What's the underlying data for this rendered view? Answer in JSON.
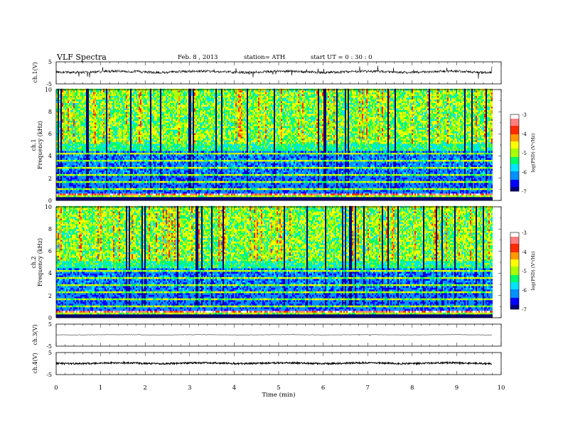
{
  "header": {
    "title": "VLF  Spectra",
    "date": "Feb. 8  , 2013",
    "station": "station= ATH",
    "start_ut": "start  UT  =    0  : 30 : 0"
  },
  "chart_data": [
    {
      "type": "line",
      "id": "ch1",
      "ylabel": "ch.1(V)",
      "ylim": [
        -5,
        5
      ],
      "yticks": [
        "5",
        "-5"
      ],
      "description_level": 0,
      "x_unit": "min",
      "xlim": [
        0,
        10
      ],
      "data_end_x": 9.8
    },
    {
      "type": "heatmap",
      "id": "ch1-spec",
      "ylabel_line1": "ch.1",
      "ylabel_line2": "Frequency  (kHz)",
      "ylim": [
        0,
        10
      ],
      "yticks": [
        "0",
        "2",
        "4",
        "6",
        "8",
        "10"
      ],
      "xlim": [
        0,
        10
      ],
      "data_end_x": 9.8,
      "colorbar": {
        "label": "log(PSD) (V²/Hz)",
        "range": [
          -7,
          -3
        ],
        "ticks": [
          "-3",
          "-4",
          "-5",
          "-6",
          "-7"
        ]
      }
    },
    {
      "type": "heatmap",
      "id": "ch2-spec",
      "ylabel_line1": "ch.2",
      "ylabel_line2": "Frequency  (kHz)",
      "ylim": [
        0,
        10
      ],
      "yticks": [
        "0",
        "2",
        "4",
        "6",
        "8",
        "10"
      ],
      "xlim": [
        0,
        10
      ],
      "data_end_x": 9.8,
      "colorbar": {
        "label": "log(PSD) (V²/Hz)",
        "range": [
          -7,
          -3
        ],
        "ticks": [
          "-3",
          "-4",
          "-5",
          "-6",
          "-7"
        ]
      }
    },
    {
      "type": "line",
      "id": "ch3",
      "ylabel": "ch.3(V)",
      "ylim": [
        -5,
        5
      ],
      "yticks": [
        "5",
        "-5"
      ],
      "level": 0,
      "xlim": [
        0,
        10
      ],
      "data_end_x": 9.8
    },
    {
      "type": "line",
      "id": "ch4",
      "ylabel": "ch.4(V)",
      "ylim": [
        -5,
        5
      ],
      "yticks": [
        "5",
        "-5"
      ],
      "level": 0,
      "xlim": [
        0,
        10
      ],
      "data_end_x": 9.8,
      "xlabel": "Time  (min)",
      "xticks": [
        "0",
        "1",
        "2",
        "3",
        "4",
        "5",
        "6",
        "7",
        "8",
        "9",
        "10"
      ]
    }
  ],
  "colors": {
    "ink": "#000000",
    "spec_scale": [
      "#00007a",
      "#0000ff",
      "#0090ff",
      "#00e5ff",
      "#00ff66",
      "#a8ff00",
      "#ffff00",
      "#ff9900",
      "#ff2a00",
      "#ff7f7f",
      "#ffffff"
    ]
  }
}
